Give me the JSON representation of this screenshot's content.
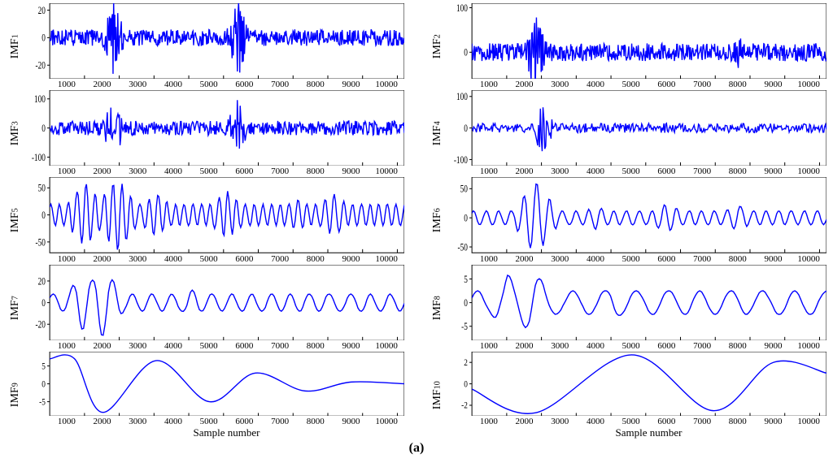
{
  "figure_label": "(a)",
  "xlabel": "Sample number",
  "xticks": [
    "1000",
    "2000",
    "3000",
    "4000",
    "5000",
    "6000",
    "7000",
    "8000",
    "9000",
    "10000"
  ],
  "line_color": "#0000ff",
  "axis_color": "#000000",
  "background_color": "#ffffff",
  "line_width": 1.4,
  "font_family": "Times New Roman",
  "tick_fontsize": 11,
  "label_fontsize": 14,
  "panels": [
    {
      "ylabel": "IMF",
      "sub": "1",
      "yticks": [
        "20",
        "0",
        "-20"
      ],
      "ylim": [
        -30,
        25
      ],
      "type": "noise",
      "seed": 1,
      "n": 600,
      "amp": 6,
      "bursts": [
        [
          0.18,
          28
        ],
        [
          0.53,
          30
        ]
      ]
    },
    {
      "ylabel": "IMF",
      "sub": "2",
      "yticks": [
        "100",
        "0"
      ],
      "ylim": [
        -60,
        110
      ],
      "type": "noise",
      "seed": 2,
      "n": 600,
      "amp": 20,
      "bursts": [
        [
          0.18,
          100
        ],
        [
          0.75,
          40
        ]
      ]
    },
    {
      "ylabel": "IMF",
      "sub": "3",
      "yticks": [
        "100",
        "0",
        "-100"
      ],
      "ylim": [
        -130,
        130
      ],
      "type": "noise",
      "seed": 3,
      "n": 500,
      "amp": 25,
      "bursts": [
        [
          0.18,
          110
        ],
        [
          0.53,
          100
        ]
      ]
    },
    {
      "ylabel": "IMF",
      "sub": "4",
      "yticks": [
        "100",
        "0",
        "-100"
      ],
      "ylim": [
        -120,
        120
      ],
      "type": "noise",
      "seed": 4,
      "n": 400,
      "amp": 15,
      "bursts": [
        [
          0.2,
          100
        ]
      ]
    },
    {
      "ylabel": "IMF",
      "sub": "5",
      "yticks": [
        "50",
        "0",
        "-50"
      ],
      "ylim": [
        -70,
        70
      ],
      "type": "osc",
      "seed": 5,
      "n": 300,
      "freq": 40,
      "amp": 20,
      "env": [
        [
          0.1,
          60
        ],
        [
          0.19,
          70
        ],
        [
          0.3,
          40
        ],
        [
          0.5,
          45
        ],
        [
          0.7,
          30
        ],
        [
          0.8,
          40
        ]
      ]
    },
    {
      "ylabel": "IMF",
      "sub": "6",
      "yticks": [
        "50",
        "0",
        "-50"
      ],
      "ylim": [
        -60,
        70
      ],
      "type": "osc",
      "seed": 6,
      "n": 250,
      "freq": 28,
      "amp": 12,
      "env": [
        [
          0.18,
          65
        ],
        [
          0.35,
          20
        ],
        [
          0.55,
          25
        ],
        [
          0.75,
          22
        ]
      ]
    },
    {
      "ylabel": "IMF",
      "sub": "7",
      "yticks": [
        "20",
        "0",
        "-20"
      ],
      "ylim": [
        -35,
        35
      ],
      "type": "osc",
      "seed": 7,
      "n": 200,
      "freq": 18,
      "amp": 8,
      "env": [
        [
          0.1,
          28
        ],
        [
          0.15,
          32
        ],
        [
          0.4,
          12
        ],
        [
          0.7,
          8
        ]
      ]
    },
    {
      "ylabel": "IMF",
      "sub": "8",
      "yticks": [
        "5",
        "0",
        "-5"
      ],
      "ylim": [
        -8,
        8
      ],
      "type": "osc",
      "seed": 8,
      "n": 180,
      "freq": 11,
      "amp": 2.5,
      "env": [
        [
          0.1,
          6
        ],
        [
          0.17,
          7
        ],
        [
          0.4,
          3.5
        ],
        [
          0.7,
          2.5
        ]
      ]
    },
    {
      "ylabel": "IMF",
      "sub": "9",
      "yticks": [
        "5",
        "0",
        "-5"
      ],
      "ylim": [
        -9,
        9
      ],
      "type": "smooth",
      "pts": [
        [
          0,
          7
        ],
        [
          0.07,
          7
        ],
        [
          0.15,
          -8
        ],
        [
          0.3,
          6.5
        ],
        [
          0.45,
          -5
        ],
        [
          0.58,
          3
        ],
        [
          0.72,
          -2
        ],
        [
          0.85,
          0.5
        ],
        [
          1.0,
          0
        ]
      ]
    },
    {
      "ylabel": "IMF",
      "sub": "10",
      "yticks": [
        "2",
        "0",
        "-2"
      ],
      "ylim": [
        -3,
        3
      ],
      "type": "smooth",
      "pts": [
        [
          0,
          -0.5
        ],
        [
          0.18,
          -2.7
        ],
        [
          0.45,
          2.7
        ],
        [
          0.68,
          -2.5
        ],
        [
          0.85,
          2
        ],
        [
          1.0,
          1
        ]
      ]
    }
  ]
}
